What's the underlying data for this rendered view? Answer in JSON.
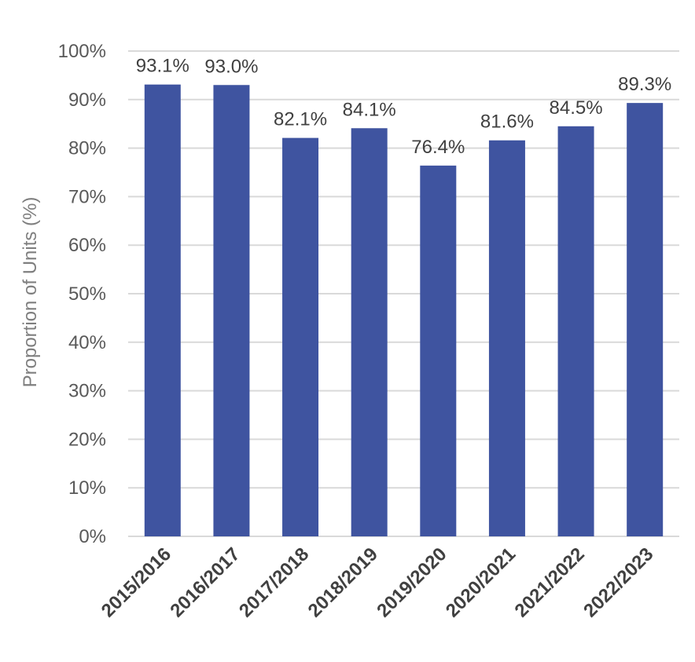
{
  "chart_data": {
    "type": "bar",
    "title": "",
    "xlabel": "",
    "ylabel": "Proportion of Units (%)",
    "categories": [
      "2015/2016",
      "2016/2017",
      "2017/2018",
      "2018/2019",
      "2019/2020",
      "2020/2021",
      "2021/2022",
      "2022/2023"
    ],
    "values": [
      93.1,
      93.0,
      82.1,
      84.1,
      76.4,
      81.6,
      84.5,
      89.3
    ],
    "data_labels": [
      "93.1%",
      "93.0%",
      "82.1%",
      "84.1%",
      "76.4%",
      "81.6%",
      "84.5%",
      "89.3%"
    ],
    "y_ticks": [
      "0%",
      "10%",
      "20%",
      "30%",
      "40%",
      "50%",
      "60%",
      "70%",
      "80%",
      "90%",
      "100%"
    ],
    "ylim": [
      0,
      100
    ],
    "grid": true,
    "legend": "none",
    "bar_color": "#3f54a0",
    "grid_color": "#d9d9d9"
  }
}
